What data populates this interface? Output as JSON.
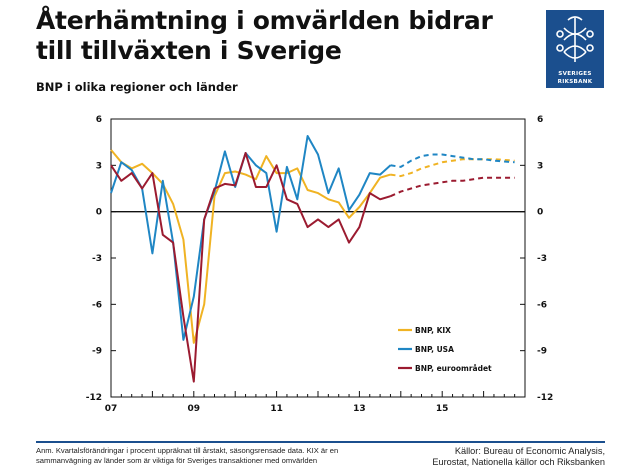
{
  "header": {
    "title": "Återhämtning i omvärlden bidrar till tillväxten i Sverige",
    "subtitle": "BNP i olika regioner och länder"
  },
  "logo": {
    "line1": "SVERIGES",
    "line2": "RIKSBANK",
    "icon": "riksbank-crest-icon"
  },
  "footer": {
    "note": "Anm. Kvartalsförändringar i procent uppräknat till årstakt, säsongsrensade data. KIX är en sammanvägning av länder som är viktiga för Sveriges transaktioner med omvärlden",
    "sources_line1": "Källor: Bureau of Economic Analysis,",
    "sources_line2": "Eurostat, Nationella källor och Riksbanken"
  },
  "colors": {
    "kix": "#f0b323",
    "usa": "#1f86c4",
    "euro": "#9b1b30",
    "axis": "#111111",
    "brand": "#1b4f8e"
  },
  "chart_data": {
    "type": "line",
    "title": "",
    "xlabel": "",
    "ylabel": "",
    "ylim": [
      -12,
      6
    ],
    "yticks": [
      -12,
      -9,
      -6,
      -3,
      0,
      3,
      6
    ],
    "xlim": [
      2007.0,
      2017.0
    ],
    "xticks": [
      {
        "value": 2007.0,
        "label": "07"
      },
      {
        "value": 2009.0,
        "label": "09"
      },
      {
        "value": 2011.0,
        "label": "11"
      },
      {
        "value": 2013.0,
        "label": "13"
      },
      {
        "value": 2015.0,
        "label": "15"
      }
    ],
    "legend": {
      "placement": "bottom-right"
    },
    "forecast_start": 2013.75,
    "series": [
      {
        "name": "BNP, KIX",
        "color_key": "kix",
        "x": [
          2007.0,
          2007.25,
          2007.5,
          2007.75,
          2008.0,
          2008.25,
          2008.5,
          2008.75,
          2009.0,
          2009.25,
          2009.5,
          2009.75,
          2010.0,
          2010.25,
          2010.5,
          2010.75,
          2011.0,
          2011.25,
          2011.5,
          2011.75,
          2012.0,
          2012.25,
          2012.5,
          2012.75,
          2013.0,
          2013.25,
          2013.5,
          2013.75,
          2014.0,
          2014.25,
          2014.5,
          2014.75,
          2015.0,
          2015.25,
          2015.5,
          2015.75,
          2016.0,
          2016.25,
          2016.5,
          2016.75
        ],
        "values": [
          4.0,
          3.2,
          2.8,
          3.1,
          2.5,
          1.8,
          0.5,
          -1.8,
          -8.5,
          -6.0,
          1.0,
          2.5,
          2.6,
          2.4,
          2.1,
          3.6,
          2.5,
          2.5,
          2.8,
          1.4,
          1.2,
          0.8,
          0.6,
          -0.4,
          0.3,
          1.2,
          2.2,
          2.4,
          2.3,
          2.5,
          2.8,
          3.0,
          3.2,
          3.3,
          3.4,
          3.4,
          3.4,
          3.4,
          3.35,
          3.3
        ]
      },
      {
        "name": "BNP, USA",
        "color_key": "usa",
        "x": [
          2007.0,
          2007.25,
          2007.5,
          2007.75,
          2008.0,
          2008.25,
          2008.5,
          2008.75,
          2009.0,
          2009.25,
          2009.5,
          2009.75,
          2010.0,
          2010.25,
          2010.5,
          2010.75,
          2011.0,
          2011.25,
          2011.5,
          2011.75,
          2012.0,
          2012.25,
          2012.5,
          2012.75,
          2013.0,
          2013.25,
          2013.5,
          2013.75,
          2014.0,
          2014.25,
          2014.5,
          2014.75,
          2015.0,
          2015.25,
          2015.5,
          2015.75,
          2016.0,
          2016.25,
          2016.5,
          2016.75
        ],
        "values": [
          1.2,
          3.2,
          2.7,
          1.5,
          -2.7,
          2.0,
          -2.0,
          -8.3,
          -5.5,
          -0.5,
          1.3,
          3.9,
          1.6,
          3.8,
          3.0,
          2.5,
          -1.3,
          2.9,
          0.8,
          4.9,
          3.7,
          1.2,
          2.8,
          0.1,
          1.1,
          2.5,
          2.4,
          3.0,
          2.9,
          3.3,
          3.6,
          3.7,
          3.7,
          3.6,
          3.5,
          3.4,
          3.4,
          3.3,
          3.25,
          3.2
        ]
      },
      {
        "name": "BNP, euroområdet",
        "color_key": "euro",
        "x": [
          2007.0,
          2007.25,
          2007.5,
          2007.75,
          2008.0,
          2008.25,
          2008.5,
          2008.75,
          2009.0,
          2009.25,
          2009.5,
          2009.75,
          2010.0,
          2010.25,
          2010.5,
          2010.75,
          2011.0,
          2011.25,
          2011.5,
          2011.75,
          2012.0,
          2012.25,
          2012.5,
          2012.75,
          2013.0,
          2013.25,
          2013.5,
          2013.75,
          2014.0,
          2014.25,
          2014.5,
          2014.75,
          2015.0,
          2015.25,
          2015.5,
          2015.75,
          2016.0,
          2016.25,
          2016.5,
          2016.75
        ],
        "values": [
          3.0,
          2.0,
          2.5,
          1.5,
          2.5,
          -1.5,
          -2.0,
          -6.8,
          -11.0,
          -0.5,
          1.5,
          1.8,
          1.7,
          3.8,
          1.6,
          1.6,
          3.0,
          0.8,
          0.5,
          -1.0,
          -0.5,
          -1.0,
          -0.5,
          -2.0,
          -1.0,
          1.2,
          0.8,
          1.0,
          1.3,
          1.5,
          1.7,
          1.8,
          1.9,
          2.0,
          2.0,
          2.1,
          2.2,
          2.2,
          2.2,
          2.2
        ]
      }
    ]
  }
}
